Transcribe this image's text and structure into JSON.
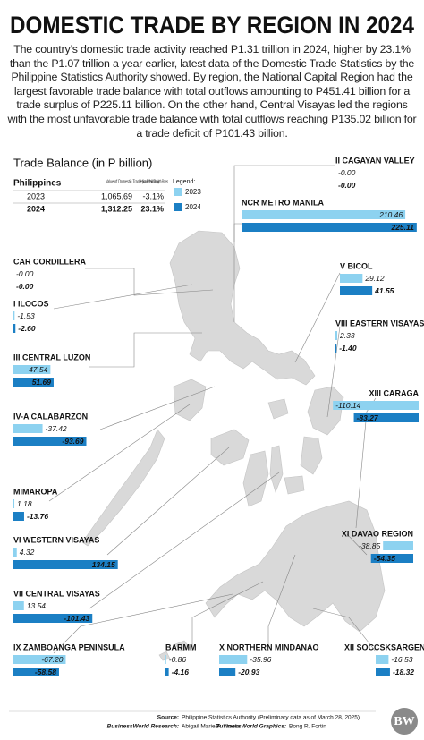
{
  "header": {
    "title": "DOMESTIC TRADE BY REGION IN 2024"
  },
  "intro": "The country’s domestic trade activity reached P1.31 trillion in 2024, higher by 23.1% than the P1.07 trillion a year earlier, latest data of the Domestic Trade Statistics by the Philippine Statistics Authority showed. By region, the National Capital Region had the largest favorable trade balance with total outflows amounting to P451.41 billion for a trade surplus of P225.11 billion. On the other hand, Central Visayas led the regions with the most unfavorable trade balance with total outflows reaching P135.02 billion for a trade deficit of P101.43 billion.",
  "chart_title": "Trade Balance (in P billion)",
  "table": {
    "header": [
      "Philippines",
      "Value of Domestic Trade (in P billion)",
      "Year-on-Year Growth Rates"
    ],
    "rows": [
      [
        "2023",
        "1,065.69",
        "-3.1%"
      ],
      [
        "2024",
        "1,312.25",
        "23.1%"
      ]
    ]
  },
  "legend": {
    "title": "Legend:",
    "labels": [
      "2023",
      "2024"
    ],
    "colors": [
      "#8dd2f0",
      "#1b7fc4"
    ]
  },
  "regions": [
    {
      "name": "II CAGAYAN VALLEY",
      "values": [
        0,
        0
      ],
      "value_labels": [
        "-0.00",
        "-0.00"
      ]
    },
    {
      "name": "NCR METRO MANILA",
      "values": [
        210.46,
        225.11
      ],
      "value_labels": [
        "210.46",
        "225.11"
      ]
    },
    {
      "name": "CAR CORDILLERA",
      "values": [
        0,
        0
      ],
      "value_labels": [
        "-0.00",
        "-0.00"
      ]
    },
    {
      "name": "V BICOL",
      "values": [
        29.12,
        41.55
      ],
      "value_labels": [
        "29.12",
        "41.55"
      ]
    },
    {
      "name": "I ILOCOS",
      "values": [
        -1.53,
        -2.6
      ],
      "value_labels": [
        "-1.53",
        "-2.60"
      ]
    },
    {
      "name": "VIII EASTERN VISAYAS",
      "values": [
        2.33,
        -1.4
      ],
      "value_labels": [
        "2.33",
        "-1.40"
      ]
    },
    {
      "name": "III CENTRAL LUZON",
      "values": [
        47.54,
        51.69
      ],
      "value_labels": [
        "47.54",
        "51.69"
      ]
    },
    {
      "name": "XIII CARAGA",
      "values": [
        -110.14,
        -83.27
      ],
      "value_labels": [
        "-110.14",
        "-83.27"
      ]
    },
    {
      "name": "IV-A CALABARZON",
      "values": [
        -37.42,
        -93.69
      ],
      "value_labels": [
        "-37.42",
        "-93.69"
      ]
    },
    {
      "name": "MIMAROPA",
      "values": [
        1.18,
        -13.76
      ],
      "value_labels": [
        "1.18",
        "-13.76"
      ]
    },
    {
      "name": "XI DAVAO REGION",
      "values": [
        -38.85,
        -54.35
      ],
      "value_labels": [
        "-38.85",
        "-54.35"
      ]
    },
    {
      "name": "VI WESTERN VISAYAS",
      "values": [
        4.32,
        134.15
      ],
      "value_labels": [
        "4.32",
        "134.15"
      ]
    },
    {
      "name": "VII CENTRAL VISAYAS",
      "values": [
        13.54,
        -101.43
      ],
      "value_labels": [
        "13.54",
        "-101.43"
      ]
    },
    {
      "name": "IX ZAMBOANGA PENINSULA",
      "values": [
        -67.2,
        -58.58
      ],
      "value_labels": [
        "-67.20",
        "-58.58"
      ]
    },
    {
      "name": "BARMM",
      "values": [
        -0.86,
        -4.16
      ],
      "value_labels": [
        "-0.86",
        "-4.16"
      ]
    },
    {
      "name": "X NORTHERN MINDANAO",
      "values": [
        -35.96,
        -20.93
      ],
      "value_labels": [
        "-35.96",
        "-20.93"
      ]
    },
    {
      "name": "XII SOCCSKSARGEN",
      "values": [
        -16.53,
        -18.32
      ],
      "value_labels": [
        "-16.53",
        "-18.32"
      ]
    }
  ],
  "footer": {
    "source_label": "Source:",
    "source": "Philippine Statistics Authority (Preliminary data as of March 28, 2025)",
    "research_label": "BusinessWorld Research:",
    "research": "Abigail Marie P. Yraola",
    "graphics_label": "BusinessWorld Graphics:",
    "graphics": "Bong R. Fortin",
    "logo": "BW"
  }
}
